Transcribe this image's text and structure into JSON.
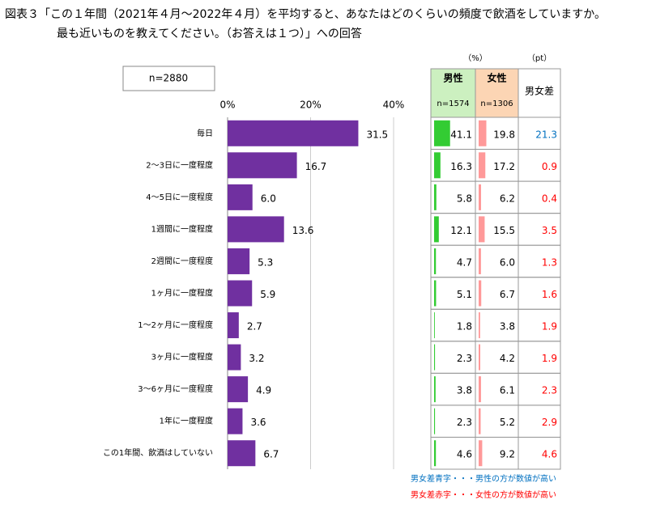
{
  "chart_data": {
    "type": "bar",
    "title": "図表３「この１年間（2021年４月～2022年４月）を平均すると、あなたはどのくらいの頻度で飲酒をしていますか。",
    "subtitle": "最も近いものを教えてください。（お答えは１つ）」への回答",
    "sample_label": "n=2880",
    "categories": [
      "毎日",
      "2～3日に一度程度",
      "4～5日に一度程度",
      "1週間に一度程度",
      "2週間に一度程度",
      "1ヶ月に一度程度",
      "1～2ヶ月に一度程度",
      "3ヶ月に一度程度",
      "3～6ヶ月に一度程度",
      "1年に一度程度",
      "この1年間、飲酒はしていない"
    ],
    "values": [
      31.5,
      16.7,
      6.0,
      13.6,
      5.3,
      5.9,
      2.7,
      3.2,
      4.9,
      3.6,
      6.7
    ],
    "value_labels": [
      "31.5",
      "16.7",
      "6.0",
      "13.6",
      "5.3",
      "5.9",
      "2.7",
      "3.2",
      "4.9",
      "3.6",
      "6.7"
    ],
    "color": "#7030a0",
    "xlim": [
      0,
      40
    ],
    "xticks": [
      {
        "value": 0,
        "label": "0%"
      },
      {
        "value": 20,
        "label": "20%"
      },
      {
        "value": 40,
        "label": "40%"
      }
    ],
    "grid": true,
    "table": {
      "unit_pct": "（%）",
      "unit_pt": "（pt）",
      "male": {
        "name": "男性",
        "n": "n=1574",
        "header_color": "#ccf0c0",
        "color": "#33cc33",
        "values": [
          41.1,
          16.3,
          5.8,
          12.1,
          4.7,
          5.1,
          1.8,
          2.3,
          3.8,
          2.3,
          4.6
        ],
        "value_labels": [
          "41.1",
          "16.3",
          "5.8",
          "12.1",
          "4.7",
          "5.1",
          "1.8",
          "2.3",
          "3.8",
          "2.3",
          "4.6"
        ]
      },
      "female": {
        "name": "女性",
        "n": "n=1306",
        "header_color": "#fcd5b4",
        "color": "#ff9999",
        "values": [
          19.8,
          17.2,
          6.2,
          15.5,
          6.0,
          6.7,
          3.8,
          4.2,
          6.1,
          5.2,
          9.2
        ],
        "value_labels": [
          "19.8",
          "17.2",
          "6.2",
          "15.5",
          "6.0",
          "6.7",
          "3.8",
          "4.2",
          "6.1",
          "5.2",
          "9.2"
        ]
      },
      "diff": {
        "name": "男女差",
        "values": [
          21.3,
          0.9,
          0.4,
          3.5,
          1.3,
          1.6,
          1.9,
          1.9,
          2.3,
          2.9,
          4.6
        ],
        "value_labels": [
          "21.3",
          "0.9",
          "0.4",
          "3.5",
          "1.3",
          "1.6",
          "1.9",
          "1.9",
          "2.3",
          "2.9",
          "4.6"
        ],
        "colors": [
          "#0070c0",
          "#ff0000",
          "#ff0000",
          "#ff0000",
          "#ff0000",
          "#ff0000",
          "#ff0000",
          "#ff0000",
          "#ff0000",
          "#ff0000",
          "#ff0000"
        ]
      },
      "notes": [
        {
          "text": "男女差青字・・・男性の方が数値が高い",
          "color": "#0070c0"
        },
        {
          "text": "男女差赤字・・・女性の方が数値が高い",
          "color": "#ff0000"
        }
      ]
    }
  }
}
